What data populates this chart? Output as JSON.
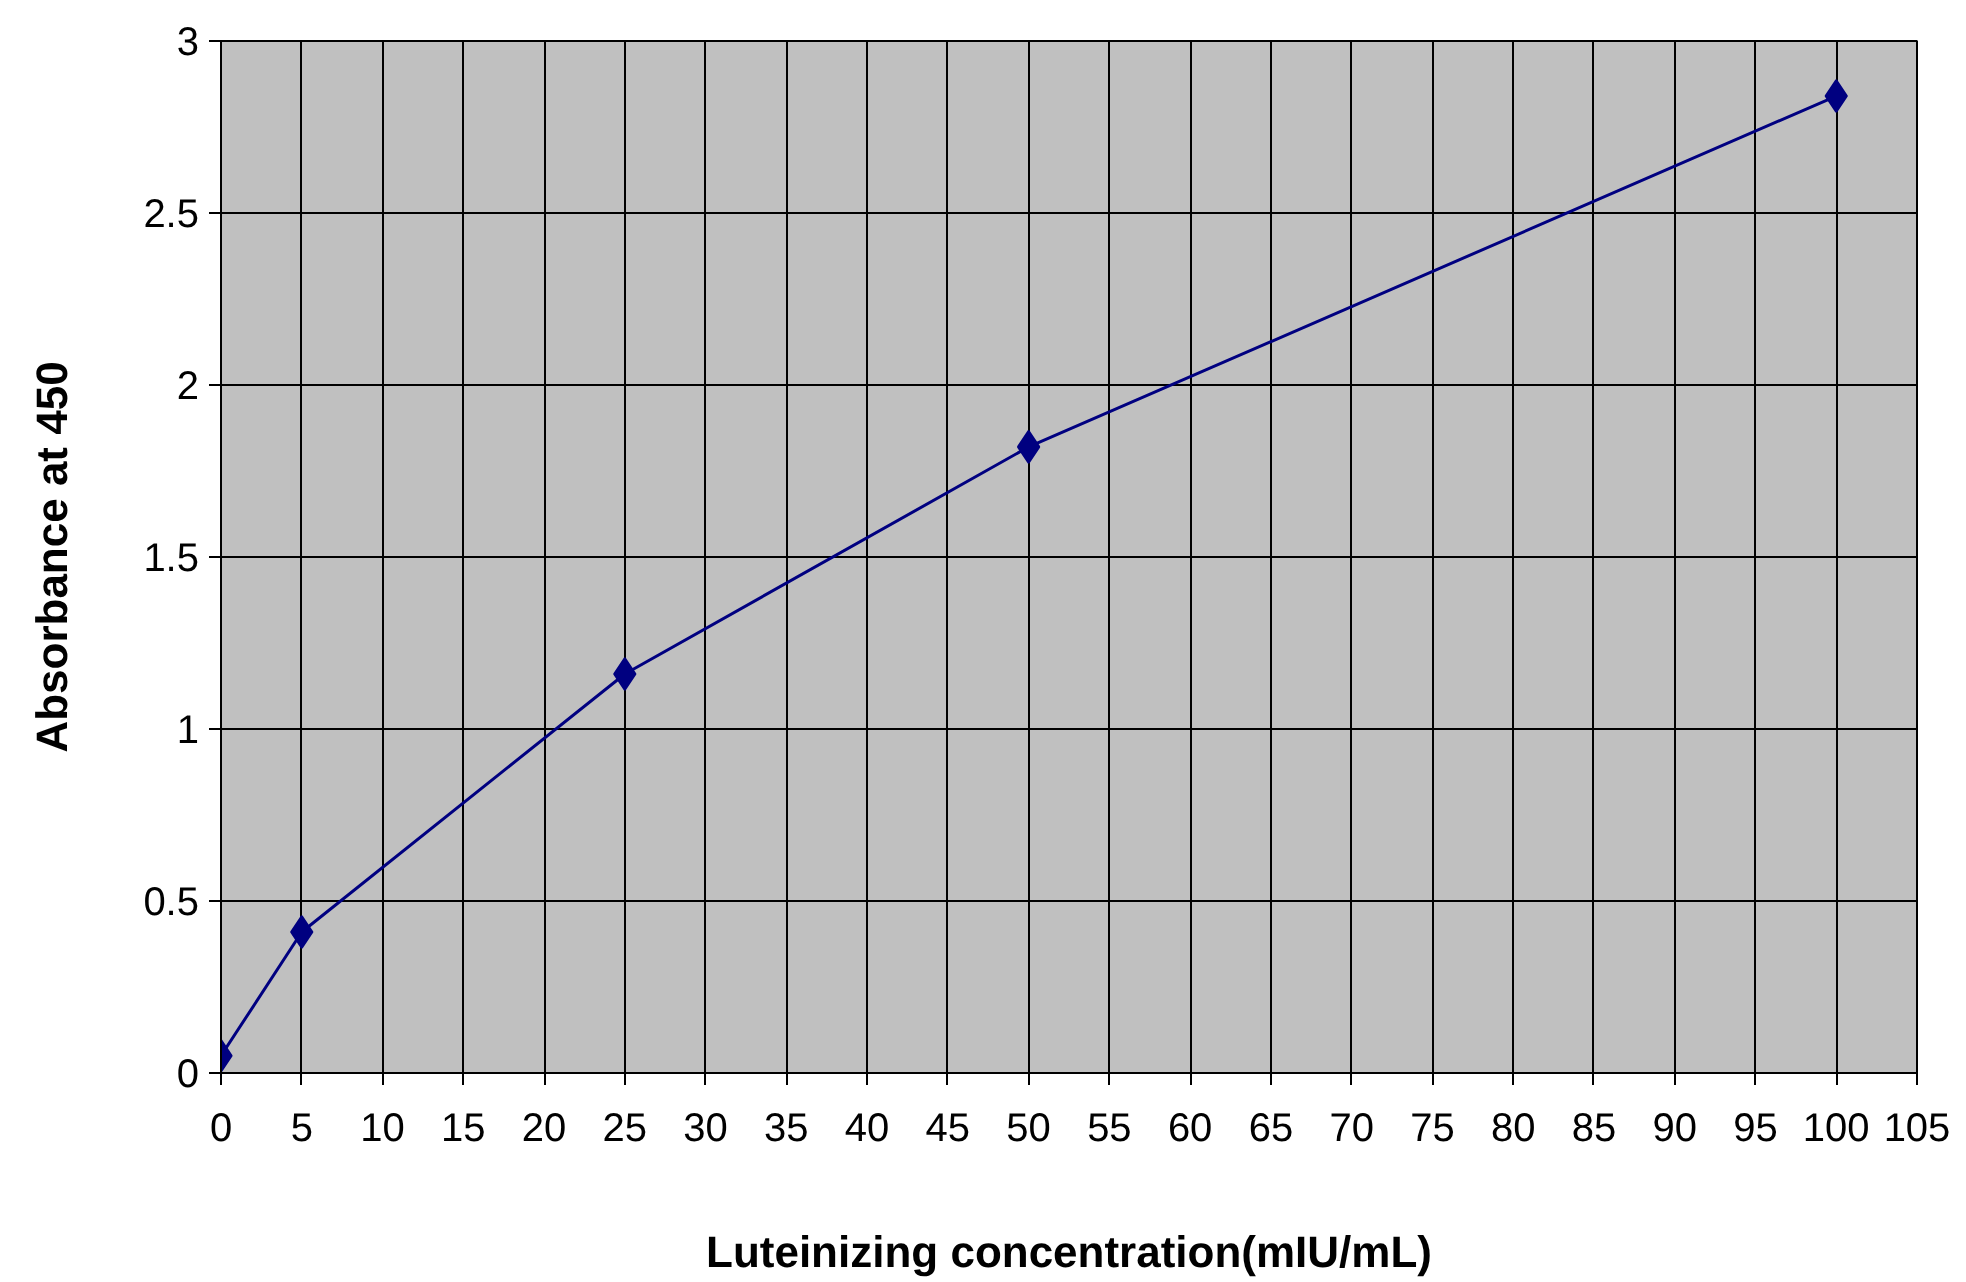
{
  "chart_data": {
    "type": "line",
    "xlabel": "Luteinizing concentration(mIU/mL)",
    "ylabel": "Absorbance at 450",
    "x": [
      0,
      5,
      25,
      50,
      100
    ],
    "series": [
      {
        "color": "#000080",
        "values": [
          0.05,
          0.41,
          1.16,
          1.82,
          2.84
        ]
      }
    ],
    "xlim": [
      0,
      105
    ],
    "xticks": [
      0,
      5,
      10,
      15,
      20,
      25,
      30,
      35,
      40,
      45,
      50,
      55,
      60,
      65,
      70,
      75,
      80,
      85,
      90,
      95,
      100,
      105
    ],
    "ylim": [
      0,
      3
    ],
    "yticks": [
      0,
      0.5,
      1,
      1.5,
      2,
      2.5,
      3
    ],
    "grid": true,
    "marker": "diamond",
    "line_style": "solid"
  }
}
